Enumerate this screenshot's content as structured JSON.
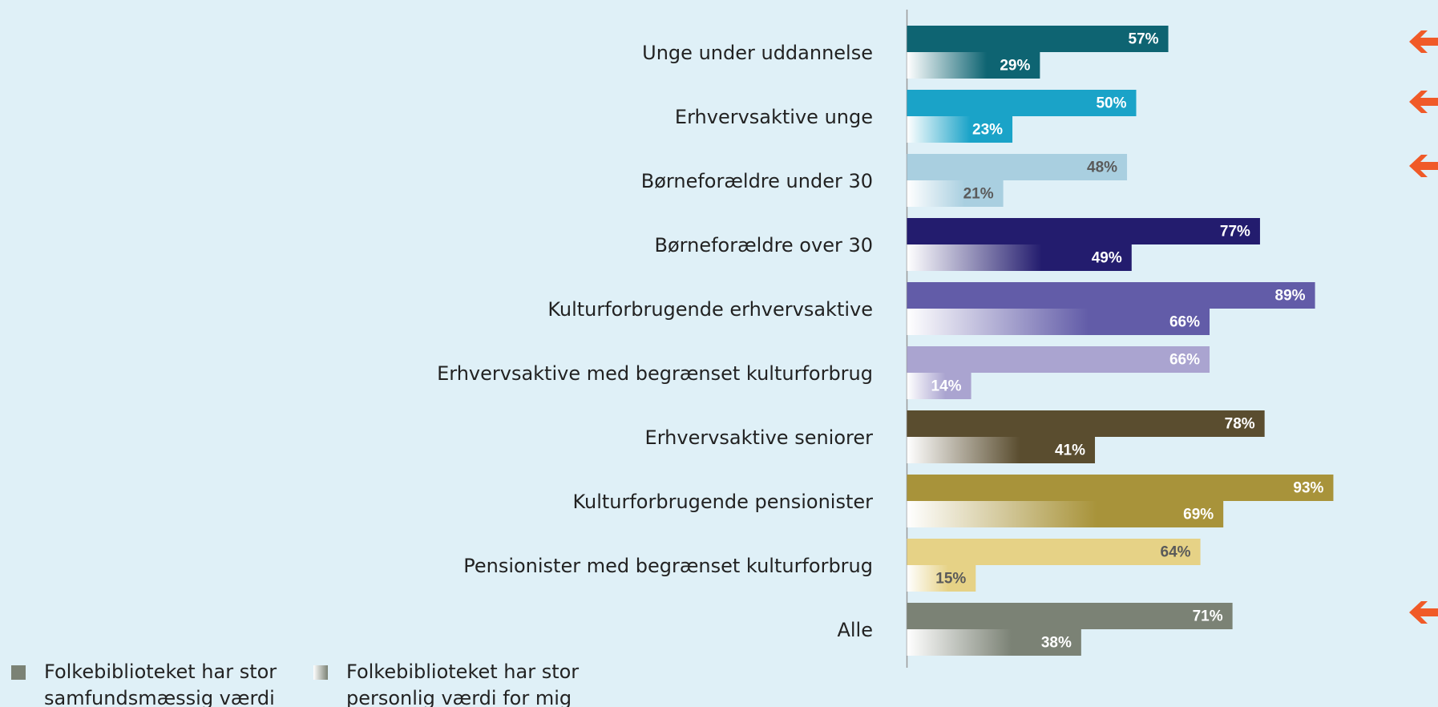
{
  "chart_data": {
    "type": "bar",
    "orientation": "horizontal",
    "categories": [
      "Unge under uddannelse",
      "Erhvervsaktive unge",
      "Børneforældre under 30",
      "Børneforældre over 30",
      "Kulturforbrugende erhvervsaktive",
      "Erhvervsaktive med begrænset kulturforbrug",
      "Erhvervsaktive seniorer",
      "Kulturforbrugende pensionister",
      "Pensionister med begrænset kulturforbrug",
      "Alle"
    ],
    "colors": [
      "#0e6472",
      "#1aa3c8",
      "#a9cfe0",
      "#231c6e",
      "#625ca8",
      "#aaa4d0",
      "#5a4d2f",
      "#a8933a",
      "#e6d286",
      "#7b8275"
    ],
    "series": [
      {
        "name": "Folkebiblioteket har stor samfundsmæssig værdi",
        "color": "#7b8275",
        "values": [
          57,
          50,
          48,
          77,
          89,
          66,
          78,
          93,
          64,
          71
        ],
        "value_labels": [
          "57%",
          "50%",
          "48%",
          "77%",
          "89%",
          "66%",
          "78%",
          "93%",
          "64%",
          "71%"
        ]
      },
      {
        "name": "Folkebiblioteket har stor personlig værdi for mig",
        "color": "#7b8275",
        "gradient": true,
        "values": [
          29,
          23,
          21,
          49,
          66,
          14,
          41,
          69,
          15,
          38
        ],
        "value_labels": [
          "29%",
          "23%",
          "21%",
          "49%",
          "66%",
          "14%",
          "41%",
          "69%",
          "15%",
          "38%"
        ]
      }
    ],
    "xlim": [
      0,
      100
    ]
  }
}
